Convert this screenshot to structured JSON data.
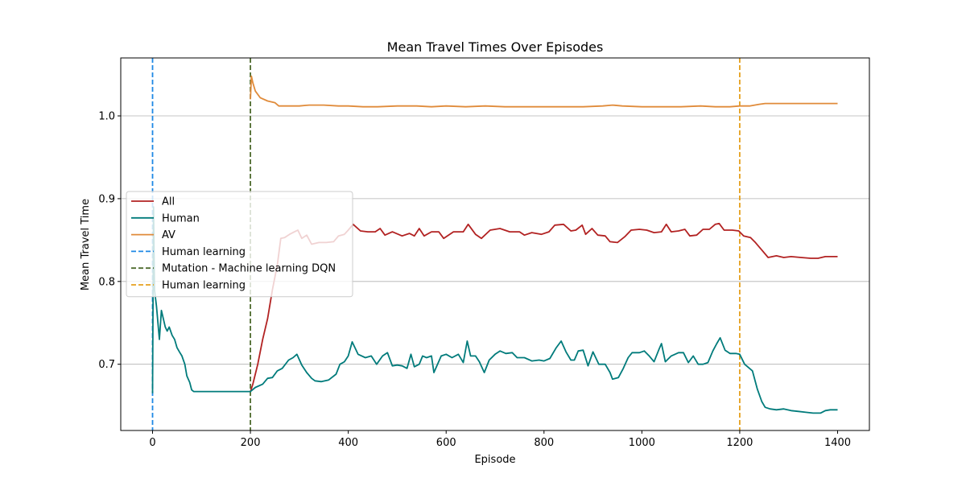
{
  "chart_data": {
    "type": "line",
    "title": "Mean Travel Times Over Episodes",
    "xlabel": "Episode",
    "ylabel": "Mean Travel Time",
    "xlim": [
      -65,
      1465
    ],
    "ylim": [
      0.62,
      1.07
    ],
    "xticks": [
      0,
      200,
      400,
      600,
      800,
      1000,
      1200,
      1400
    ],
    "yticks": [
      0.7,
      0.8,
      0.9,
      1.0
    ],
    "ytick_labels": [
      "0.7",
      "0.8",
      "0.9",
      "1.0"
    ],
    "grid": "horizontal",
    "legend_position": "center-left",
    "series": [
      {
        "name": "All",
        "color": "#b22222",
        "points": [
          [
            200,
            0.667
          ],
          [
            205,
            0.676
          ],
          [
            215,
            0.7
          ],
          [
            225,
            0.73
          ],
          [
            235,
            0.755
          ],
          [
            245,
            0.79
          ],
          [
            255,
            0.82
          ],
          [
            262,
            0.852
          ],
          [
            270,
            0.853
          ],
          [
            280,
            0.857
          ],
          [
            290,
            0.86
          ],
          [
            297,
            0.862
          ],
          [
            305,
            0.852
          ],
          [
            315,
            0.856
          ],
          [
            325,
            0.845
          ],
          [
            340,
            0.847
          ],
          [
            355,
            0.847
          ],
          [
            370,
            0.848
          ],
          [
            380,
            0.855
          ],
          [
            392,
            0.857
          ],
          [
            400,
            0.862
          ],
          [
            410,
            0.869
          ],
          [
            425,
            0.861
          ],
          [
            440,
            0.86
          ],
          [
            455,
            0.86
          ],
          [
            465,
            0.864
          ],
          [
            475,
            0.856
          ],
          [
            490,
            0.86
          ],
          [
            510,
            0.855
          ],
          [
            525,
            0.858
          ],
          [
            535,
            0.855
          ],
          [
            545,
            0.864
          ],
          [
            555,
            0.855
          ],
          [
            570,
            0.86
          ],
          [
            585,
            0.86
          ],
          [
            595,
            0.852
          ],
          [
            615,
            0.86
          ],
          [
            635,
            0.86
          ],
          [
            645,
            0.869
          ],
          [
            660,
            0.857
          ],
          [
            672,
            0.852
          ],
          [
            690,
            0.862
          ],
          [
            710,
            0.864
          ],
          [
            730,
            0.86
          ],
          [
            750,
            0.86
          ],
          [
            760,
            0.856
          ],
          [
            775,
            0.859
          ],
          [
            795,
            0.857
          ],
          [
            810,
            0.86
          ],
          [
            822,
            0.868
          ],
          [
            840,
            0.869
          ],
          [
            855,
            0.861
          ],
          [
            865,
            0.862
          ],
          [
            878,
            0.868
          ],
          [
            885,
            0.857
          ],
          [
            898,
            0.864
          ],
          [
            910,
            0.856
          ],
          [
            925,
            0.855
          ],
          [
            935,
            0.848
          ],
          [
            950,
            0.847
          ],
          [
            965,
            0.854
          ],
          [
            978,
            0.862
          ],
          [
            995,
            0.863
          ],
          [
            1010,
            0.862
          ],
          [
            1025,
            0.859
          ],
          [
            1040,
            0.86
          ],
          [
            1050,
            0.869
          ],
          [
            1060,
            0.86
          ],
          [
            1075,
            0.861
          ],
          [
            1088,
            0.863
          ],
          [
            1098,
            0.855
          ],
          [
            1112,
            0.856
          ],
          [
            1125,
            0.863
          ],
          [
            1138,
            0.863
          ],
          [
            1150,
            0.869
          ],
          [
            1158,
            0.87
          ],
          [
            1168,
            0.862
          ],
          [
            1185,
            0.862
          ],
          [
            1198,
            0.861
          ],
          [
            1208,
            0.855
          ],
          [
            1222,
            0.853
          ],
          [
            1232,
            0.847
          ],
          [
            1245,
            0.838
          ],
          [
            1258,
            0.829
          ],
          [
            1275,
            0.831
          ],
          [
            1290,
            0.829
          ],
          [
            1305,
            0.83
          ],
          [
            1325,
            0.829
          ],
          [
            1345,
            0.828
          ],
          [
            1360,
            0.828
          ],
          [
            1375,
            0.83
          ],
          [
            1400,
            0.83
          ]
        ]
      },
      {
        "name": "Human",
        "color": "#007b7b",
        "points": [
          [
            0,
            0.665
          ],
          [
            2,
            0.89
          ],
          [
            4,
            0.79
          ],
          [
            8,
            0.77
          ],
          [
            14,
            0.73
          ],
          [
            18,
            0.765
          ],
          [
            22,
            0.755
          ],
          [
            26,
            0.745
          ],
          [
            30,
            0.74
          ],
          [
            34,
            0.745
          ],
          [
            40,
            0.735
          ],
          [
            45,
            0.73
          ],
          [
            50,
            0.72
          ],
          [
            55,
            0.715
          ],
          [
            60,
            0.71
          ],
          [
            66,
            0.7
          ],
          [
            70,
            0.686
          ],
          [
            76,
            0.678
          ],
          [
            80,
            0.669
          ],
          [
            84,
            0.667
          ],
          [
            120,
            0.667
          ],
          [
            160,
            0.667
          ],
          [
            200,
            0.667
          ],
          [
            210,
            0.672
          ],
          [
            225,
            0.676
          ],
          [
            235,
            0.683
          ],
          [
            245,
            0.684
          ],
          [
            255,
            0.692
          ],
          [
            265,
            0.695
          ],
          [
            278,
            0.705
          ],
          [
            287,
            0.708
          ],
          [
            295,
            0.712
          ],
          [
            305,
            0.699
          ],
          [
            315,
            0.69
          ],
          [
            325,
            0.683
          ],
          [
            332,
            0.68
          ],
          [
            345,
            0.679
          ],
          [
            360,
            0.681
          ],
          [
            375,
            0.688
          ],
          [
            383,
            0.7
          ],
          [
            392,
            0.703
          ],
          [
            400,
            0.71
          ],
          [
            408,
            0.727
          ],
          [
            420,
            0.712
          ],
          [
            435,
            0.708
          ],
          [
            447,
            0.71
          ],
          [
            458,
            0.7
          ],
          [
            470,
            0.71
          ],
          [
            480,
            0.714
          ],
          [
            490,
            0.698
          ],
          [
            500,
            0.699
          ],
          [
            510,
            0.698
          ],
          [
            520,
            0.695
          ],
          [
            528,
            0.712
          ],
          [
            535,
            0.697
          ],
          [
            545,
            0.7
          ],
          [
            552,
            0.71
          ],
          [
            560,
            0.708
          ],
          [
            570,
            0.71
          ],
          [
            575,
            0.69
          ],
          [
            590,
            0.71
          ],
          [
            600,
            0.712
          ],
          [
            612,
            0.708
          ],
          [
            625,
            0.712
          ],
          [
            635,
            0.702
          ],
          [
            643,
            0.728
          ],
          [
            650,
            0.71
          ],
          [
            660,
            0.71
          ],
          [
            668,
            0.703
          ],
          [
            678,
            0.69
          ],
          [
            688,
            0.705
          ],
          [
            700,
            0.712
          ],
          [
            710,
            0.716
          ],
          [
            722,
            0.713
          ],
          [
            735,
            0.714
          ],
          [
            745,
            0.708
          ],
          [
            760,
            0.708
          ],
          [
            775,
            0.704
          ],
          [
            790,
            0.705
          ],
          [
            800,
            0.704
          ],
          [
            812,
            0.707
          ],
          [
            825,
            0.72
          ],
          [
            835,
            0.728
          ],
          [
            845,
            0.715
          ],
          [
            855,
            0.705
          ],
          [
            862,
            0.705
          ],
          [
            870,
            0.716
          ],
          [
            880,
            0.717
          ],
          [
            890,
            0.698
          ],
          [
            900,
            0.715
          ],
          [
            912,
            0.7
          ],
          [
            925,
            0.7
          ],
          [
            935,
            0.69
          ],
          [
            940,
            0.682
          ],
          [
            952,
            0.684
          ],
          [
            962,
            0.695
          ],
          [
            972,
            0.708
          ],
          [
            980,
            0.714
          ],
          [
            995,
            0.714
          ],
          [
            1005,
            0.716
          ],
          [
            1015,
            0.71
          ],
          [
            1025,
            0.703
          ],
          [
            1035,
            0.718
          ],
          [
            1040,
            0.725
          ],
          [
            1048,
            0.703
          ],
          [
            1060,
            0.71
          ],
          [
            1075,
            0.714
          ],
          [
            1085,
            0.714
          ],
          [
            1095,
            0.702
          ],
          [
            1105,
            0.71
          ],
          [
            1115,
            0.7
          ],
          [
            1125,
            0.7
          ],
          [
            1135,
            0.702
          ],
          [
            1145,
            0.716
          ],
          [
            1153,
            0.725
          ],
          [
            1160,
            0.732
          ],
          [
            1170,
            0.717
          ],
          [
            1180,
            0.713
          ],
          [
            1192,
            0.713
          ],
          [
            1200,
            0.712
          ],
          [
            1210,
            0.7
          ],
          [
            1218,
            0.696
          ],
          [
            1226,
            0.692
          ],
          [
            1236,
            0.67
          ],
          [
            1245,
            0.655
          ],
          [
            1252,
            0.648
          ],
          [
            1262,
            0.646
          ],
          [
            1275,
            0.645
          ],
          [
            1290,
            0.646
          ],
          [
            1305,
            0.644
          ],
          [
            1320,
            0.643
          ],
          [
            1335,
            0.642
          ],
          [
            1350,
            0.641
          ],
          [
            1365,
            0.641
          ],
          [
            1375,
            0.644
          ],
          [
            1385,
            0.645
          ],
          [
            1400,
            0.645
          ]
        ]
      },
      {
        "name": "AV",
        "color": "#e08b3a",
        "points": [
          [
            200,
            1.02
          ],
          [
            202,
            1.048
          ],
          [
            205,
            1.04
          ],
          [
            210,
            1.03
          ],
          [
            220,
            1.022
          ],
          [
            235,
            1.018
          ],
          [
            250,
            1.016
          ],
          [
            258,
            1.012
          ],
          [
            280,
            1.012
          ],
          [
            300,
            1.012
          ],
          [
            320,
            1.013
          ],
          [
            350,
            1.013
          ],
          [
            380,
            1.012
          ],
          [
            400,
            1.012
          ],
          [
            430,
            1.011
          ],
          [
            460,
            1.011
          ],
          [
            500,
            1.012
          ],
          [
            540,
            1.012
          ],
          [
            570,
            1.011
          ],
          [
            600,
            1.012
          ],
          [
            640,
            1.011
          ],
          [
            680,
            1.012
          ],
          [
            720,
            1.011
          ],
          [
            760,
            1.011
          ],
          [
            800,
            1.011
          ],
          [
            840,
            1.011
          ],
          [
            880,
            1.011
          ],
          [
            920,
            1.012
          ],
          [
            940,
            1.013
          ],
          [
            960,
            1.012
          ],
          [
            1000,
            1.011
          ],
          [
            1040,
            1.011
          ],
          [
            1080,
            1.011
          ],
          [
            1120,
            1.012
          ],
          [
            1150,
            1.011
          ],
          [
            1165,
            1.011
          ],
          [
            1180,
            1.011
          ],
          [
            1200,
            1.012
          ],
          [
            1220,
            1.012
          ],
          [
            1240,
            1.014
          ],
          [
            1252,
            1.015
          ],
          [
            1280,
            1.015
          ],
          [
            1320,
            1.015
          ],
          [
            1360,
            1.015
          ],
          [
            1400,
            1.015
          ]
        ]
      }
    ],
    "vlines": [
      {
        "name": "Human learning",
        "x": 0,
        "color": "#1e88e5"
      },
      {
        "name": "Mutation - Machine learning DQN",
        "x": 200,
        "color": "#4e6b2e"
      },
      {
        "name": "Human learning",
        "x": 1200,
        "color": "#e6a11e"
      }
    ]
  }
}
